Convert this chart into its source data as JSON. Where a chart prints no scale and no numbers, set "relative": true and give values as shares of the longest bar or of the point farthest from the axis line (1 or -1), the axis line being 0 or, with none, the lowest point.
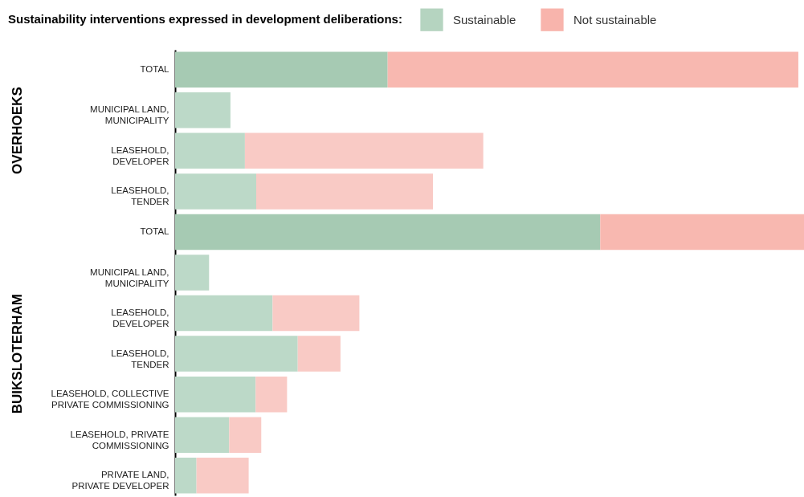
{
  "chart_data": {
    "type": "bar",
    "orientation": "horizontal",
    "stacked": true,
    "relative": true,
    "legend_title": "Sustainability interventions expressed in development deliberations:",
    "legend": "top right",
    "categories": [
      "TOTAL",
      "MUNICIPAL LAND,\nMUNICIPALITY",
      "LEASEHOLD,\nDEVELOPER",
      "LEASEHOLD,\nTENDER",
      "TOTAL",
      "MUNICIPAL LAND,\nMUNICIPALITY",
      "LEASEHOLD,\nDEVELOPER",
      "LEASEHOLD,\nTENDER",
      "LEASEHOLD, COLLECTIVE\nPRIVATE COMMISSIONING",
      "LEASEHOLD, PRIVATE\nCOMMISSIONING",
      "PRIVATE LAND,\nPRIVATE DEVELOPER"
    ],
    "annotations": [
      "OVERHOEKS",
      "BUIKSLOTERHAM"
    ],
    "series": [
      {
        "name": "Sustainable",
        "color": "#b5d4c0",
        "values": [
          0.338,
          0.088,
          0.111,
          0.129,
          0.676,
          0.054,
          0.155,
          0.195,
          0.128,
          0.086,
          0.034
        ],
        "colors": [
          "#a6cab3",
          "#bcd9c8",
          "#bcd9c8",
          "#bcd9c8",
          "#a6cab3",
          "#bcd9c8",
          "#bcd9c8",
          "#bcd9c8",
          "#bcd9c8",
          "#bcd9c8",
          "#bcd9c8"
        ]
      },
      {
        "name": "Not sustainable",
        "color": "#f8b4ac",
        "values": [
          0.653,
          null,
          0.379,
          0.281,
          0.324,
          null,
          0.138,
          0.068,
          0.05,
          0.051,
          0.083
        ],
        "colors": [
          "#f8b8b0",
          "#f9cac5",
          "#f9cac5",
          "#f9cac5",
          "#f8b8b0",
          "#f9cac5",
          "#f9cac5",
          "#f9cac5",
          "#f9cac5",
          "#f9cac5",
          "#f9cac5"
        ]
      }
    ]
  }
}
